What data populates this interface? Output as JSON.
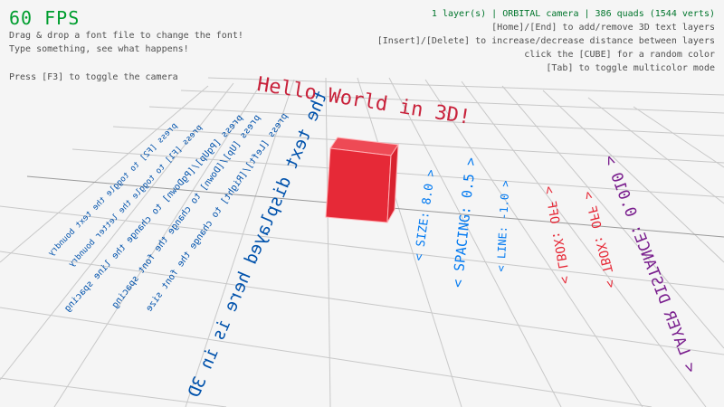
{
  "hud": {
    "fps": "60 FPS",
    "help_left": [
      "Drag & drop a font file to change the font!",
      "Type something, see what happens!",
      "Press [F3] to toggle the camera"
    ],
    "status": "1 layer(s) | ORBITAL camera |  386 quads (1544 verts)",
    "help_right": [
      "[Home]/[End] to add/remove 3D text layers",
      "[Insert]/[Delete] to increase/decrease distance between layers",
      "click the [CUBE] for a random color",
      "[Tab] to toggle multicolor mode"
    ]
  },
  "scene": {
    "title_text": "Hello World in 3D!",
    "hero_text": "the text displayed here is in 3D",
    "instructions": [
      "press [Left]/[Right] to change the font size",
      "press [Up]/[Down] to change the font spacing",
      "press [PgUp]/[PgDown] to change the line spacing",
      "press [F1] to toggle the letter boundry",
      "press [F2] to toggle the text boundry"
    ],
    "settings": {
      "size": "< SIZE: 8.0 >",
      "spacing": "< SPACING: 0.5 >",
      "line": "< LINE: -1.0 >",
      "lbox": "< LBOX: OFF >",
      "tbox": "< TBOX: OFF >",
      "layer_distance": "< LAYER DISTANCE: 0.010 >"
    },
    "cube_color": "#e62937"
  },
  "colors": {
    "background": "#f5f5f5",
    "fps": "#009e2f",
    "status": "#00752c",
    "help": "#505050",
    "hero": "#0052ac",
    "settings_blue": "#0079f1",
    "settings_red": "#e62937",
    "settings_purple": "#7a1f8e",
    "grid": "#c8c8c8"
  }
}
